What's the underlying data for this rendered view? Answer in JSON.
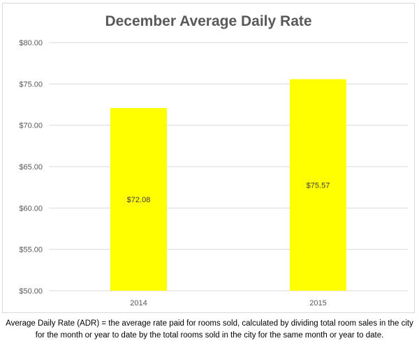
{
  "chart_data": {
    "type": "bar",
    "title": "December Average Daily Rate",
    "categories": [
      "2014",
      "2015"
    ],
    "values": [
      72.08,
      75.57
    ],
    "data_labels": [
      "$72.08",
      "$75.57"
    ],
    "xlabel": "",
    "ylabel": "",
    "ylim": [
      50,
      80
    ],
    "y_ticks": [
      50,
      55,
      60,
      65,
      70,
      75,
      80
    ],
    "y_tick_labels": [
      "$50.00",
      "$55.00",
      "$60.00",
      "$65.00",
      "$70.00",
      "$75.00",
      "$80.00"
    ],
    "grid": true,
    "legend": "none",
    "bar_color": "#ffff00",
    "grid_color": "#d9d9d9"
  },
  "footnote": "Average Daily Rate (ADR) = the average rate paid for rooms sold, calculated by dividing total room sales in the city for the month or year to date by the total rooms sold in the city for the same month or year to date."
}
